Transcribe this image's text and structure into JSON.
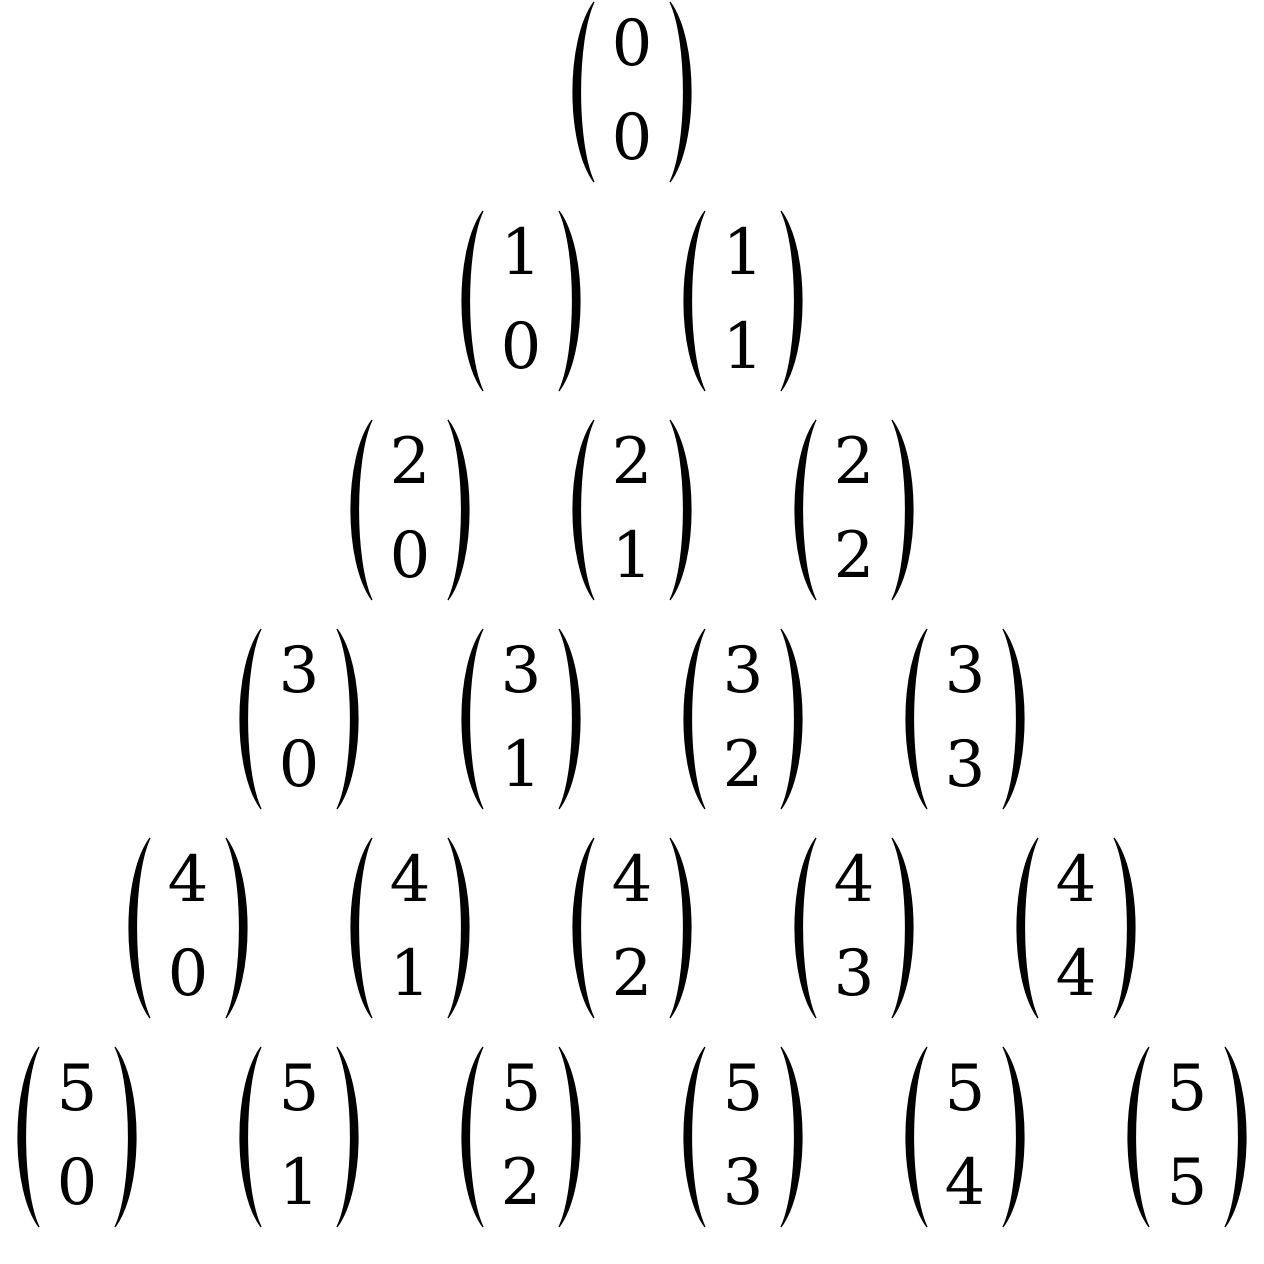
{
  "rows": [
    [
      [
        "0",
        "0"
      ]
    ],
    [
      [
        "1",
        "0"
      ],
      [
        "1",
        "1"
      ]
    ],
    [
      [
        "2",
        "0"
      ],
      [
        "2",
        "1"
      ],
      [
        "2",
        "2"
      ]
    ],
    [
      [
        "3",
        "0"
      ],
      [
        "3",
        "1"
      ],
      [
        "3",
        "2"
      ],
      [
        "3",
        "3"
      ]
    ],
    [
      [
        "4",
        "0"
      ],
      [
        "4",
        "1"
      ],
      [
        "4",
        "2"
      ],
      [
        "4",
        "3"
      ],
      [
        "4",
        "4"
      ]
    ],
    [
      [
        "5",
        "0"
      ],
      [
        "5",
        "1"
      ],
      [
        "5",
        "2"
      ],
      [
        "5",
        "3"
      ],
      [
        "5",
        "4"
      ],
      [
        "5",
        "5"
      ]
    ]
  ]
}
